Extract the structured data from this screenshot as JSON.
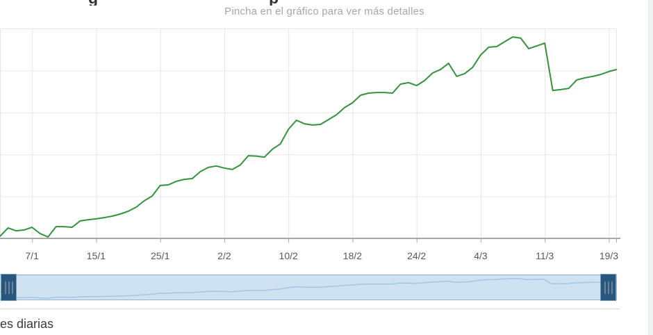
{
  "page": {
    "bottom_heading": "es diarias"
  },
  "header": {
    "clipped_title_fragments": {
      "f1": "g",
      "f2": "p"
    },
    "subtitle": "Pincha en el gráfico para ver más detalles"
  },
  "chart_data": {
    "type": "line",
    "title": "",
    "subtitle": "Pincha en el gráfico para ver más detalles",
    "x_tick_labels": [
      "7/1",
      "15/1",
      "25/1",
      "2/2",
      "10/2",
      "18/2",
      "24/2",
      "4/3",
      "11/3",
      "19/3"
    ],
    "x_tick_indices": [
      4,
      12,
      20,
      28,
      36,
      44,
      52,
      60,
      68,
      76
    ],
    "values": [
      1.0,
      5.0,
      3.6,
      4.0,
      5.3,
      2.3,
      0.7,
      5.6,
      5.6,
      5.3,
      8.3,
      8.9,
      9.3,
      9.9,
      10.6,
      11.6,
      12.9,
      14.9,
      17.9,
      20.2,
      25.2,
      25.5,
      27.2,
      28.1,
      28.5,
      31.8,
      33.8,
      34.5,
      33.5,
      32.8,
      35.0,
      39.4,
      39.2,
      38.7,
      42.5,
      45.0,
      52.0,
      56.3,
      54.6,
      54.0,
      54.3,
      56.6,
      58.9,
      62.3,
      64.6,
      68.2,
      69.2,
      69.5,
      69.5,
      69.2,
      73.5,
      74.2,
      72.8,
      75.2,
      78.8,
      80.5,
      83.4,
      77.2,
      78.5,
      81.5,
      87.4,
      91.1,
      91.4,
      93.7,
      96.0,
      95.4,
      90.4,
      91.7,
      93.0,
      70.5,
      70.9,
      71.5,
      75.5,
      76.5,
      77.2,
      78.1,
      79.5,
      80.5
    ],
    "ylim": [
      0,
      100
    ],
    "y_axis_labels_visible": false,
    "grid": true,
    "legend": "none",
    "colors": {
      "series": "#35913e",
      "grid": "#e6e6e6",
      "axis": "#a7a7a7",
      "tick_label": "#53585e",
      "subtitle": "#a3a7ad"
    }
  },
  "navigator": {
    "track_color": "#cfe2f1",
    "border_color": "#9cb3ca",
    "line_color": "#a5c6e1",
    "handle_color": "#27567e",
    "handle_stripe_color": "#6e8398"
  }
}
